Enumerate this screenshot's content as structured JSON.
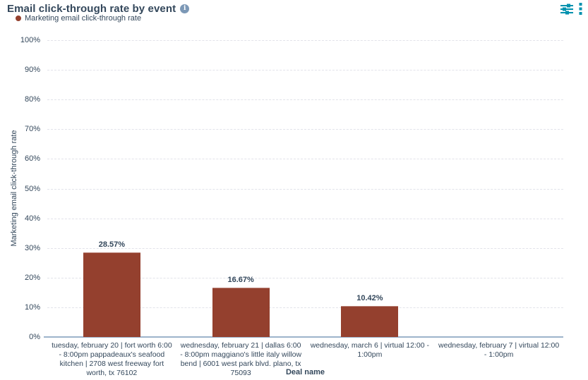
{
  "header": {
    "title": "Email click-through rate by event",
    "info_icon": "i"
  },
  "legend": {
    "label": "Marketing email click-through rate"
  },
  "colors": {
    "bar": "#94402e",
    "text": "#33475b",
    "accent_teal": "#0091ae",
    "info_icon_bg": "#7c98b6",
    "axis_line": "#9db3cb",
    "gridline": "#e2e3ea"
  },
  "chart_data": {
    "type": "bar",
    "title": "Email click-through rate by event",
    "xlabel": "Deal name",
    "ylabel": "Marketing email click-through rate",
    "ylim": [
      0,
      100
    ],
    "ytick_step": 10,
    "ytick_suffix": "%",
    "grid": "horizontal-dashed",
    "legend_position": "top-left",
    "legend_entries": [
      "Marketing email click-through rate"
    ],
    "bar_color": "#94402e",
    "categories": [
      "tuesday, february 20 | fort worth 6:00 - 8:00pm pappadeaux's seafood kitchen | 2708 west freeway fort worth, tx 76102",
      "wednesday, february 21 | dallas 6:00 - 8:00pm maggiano's little italy willow bend | 6001 west park blvd. plano, tx 75093",
      "wednesday, march 6 | virtual 12:00 - 1:00pm",
      "wednesday, february 7 | virtual 12:00 - 1:00pm"
    ],
    "values": [
      28.57,
      16.67,
      10.42,
      0
    ],
    "data_labels": [
      "28.57%",
      "16.67%",
      "10.42%",
      ""
    ]
  }
}
